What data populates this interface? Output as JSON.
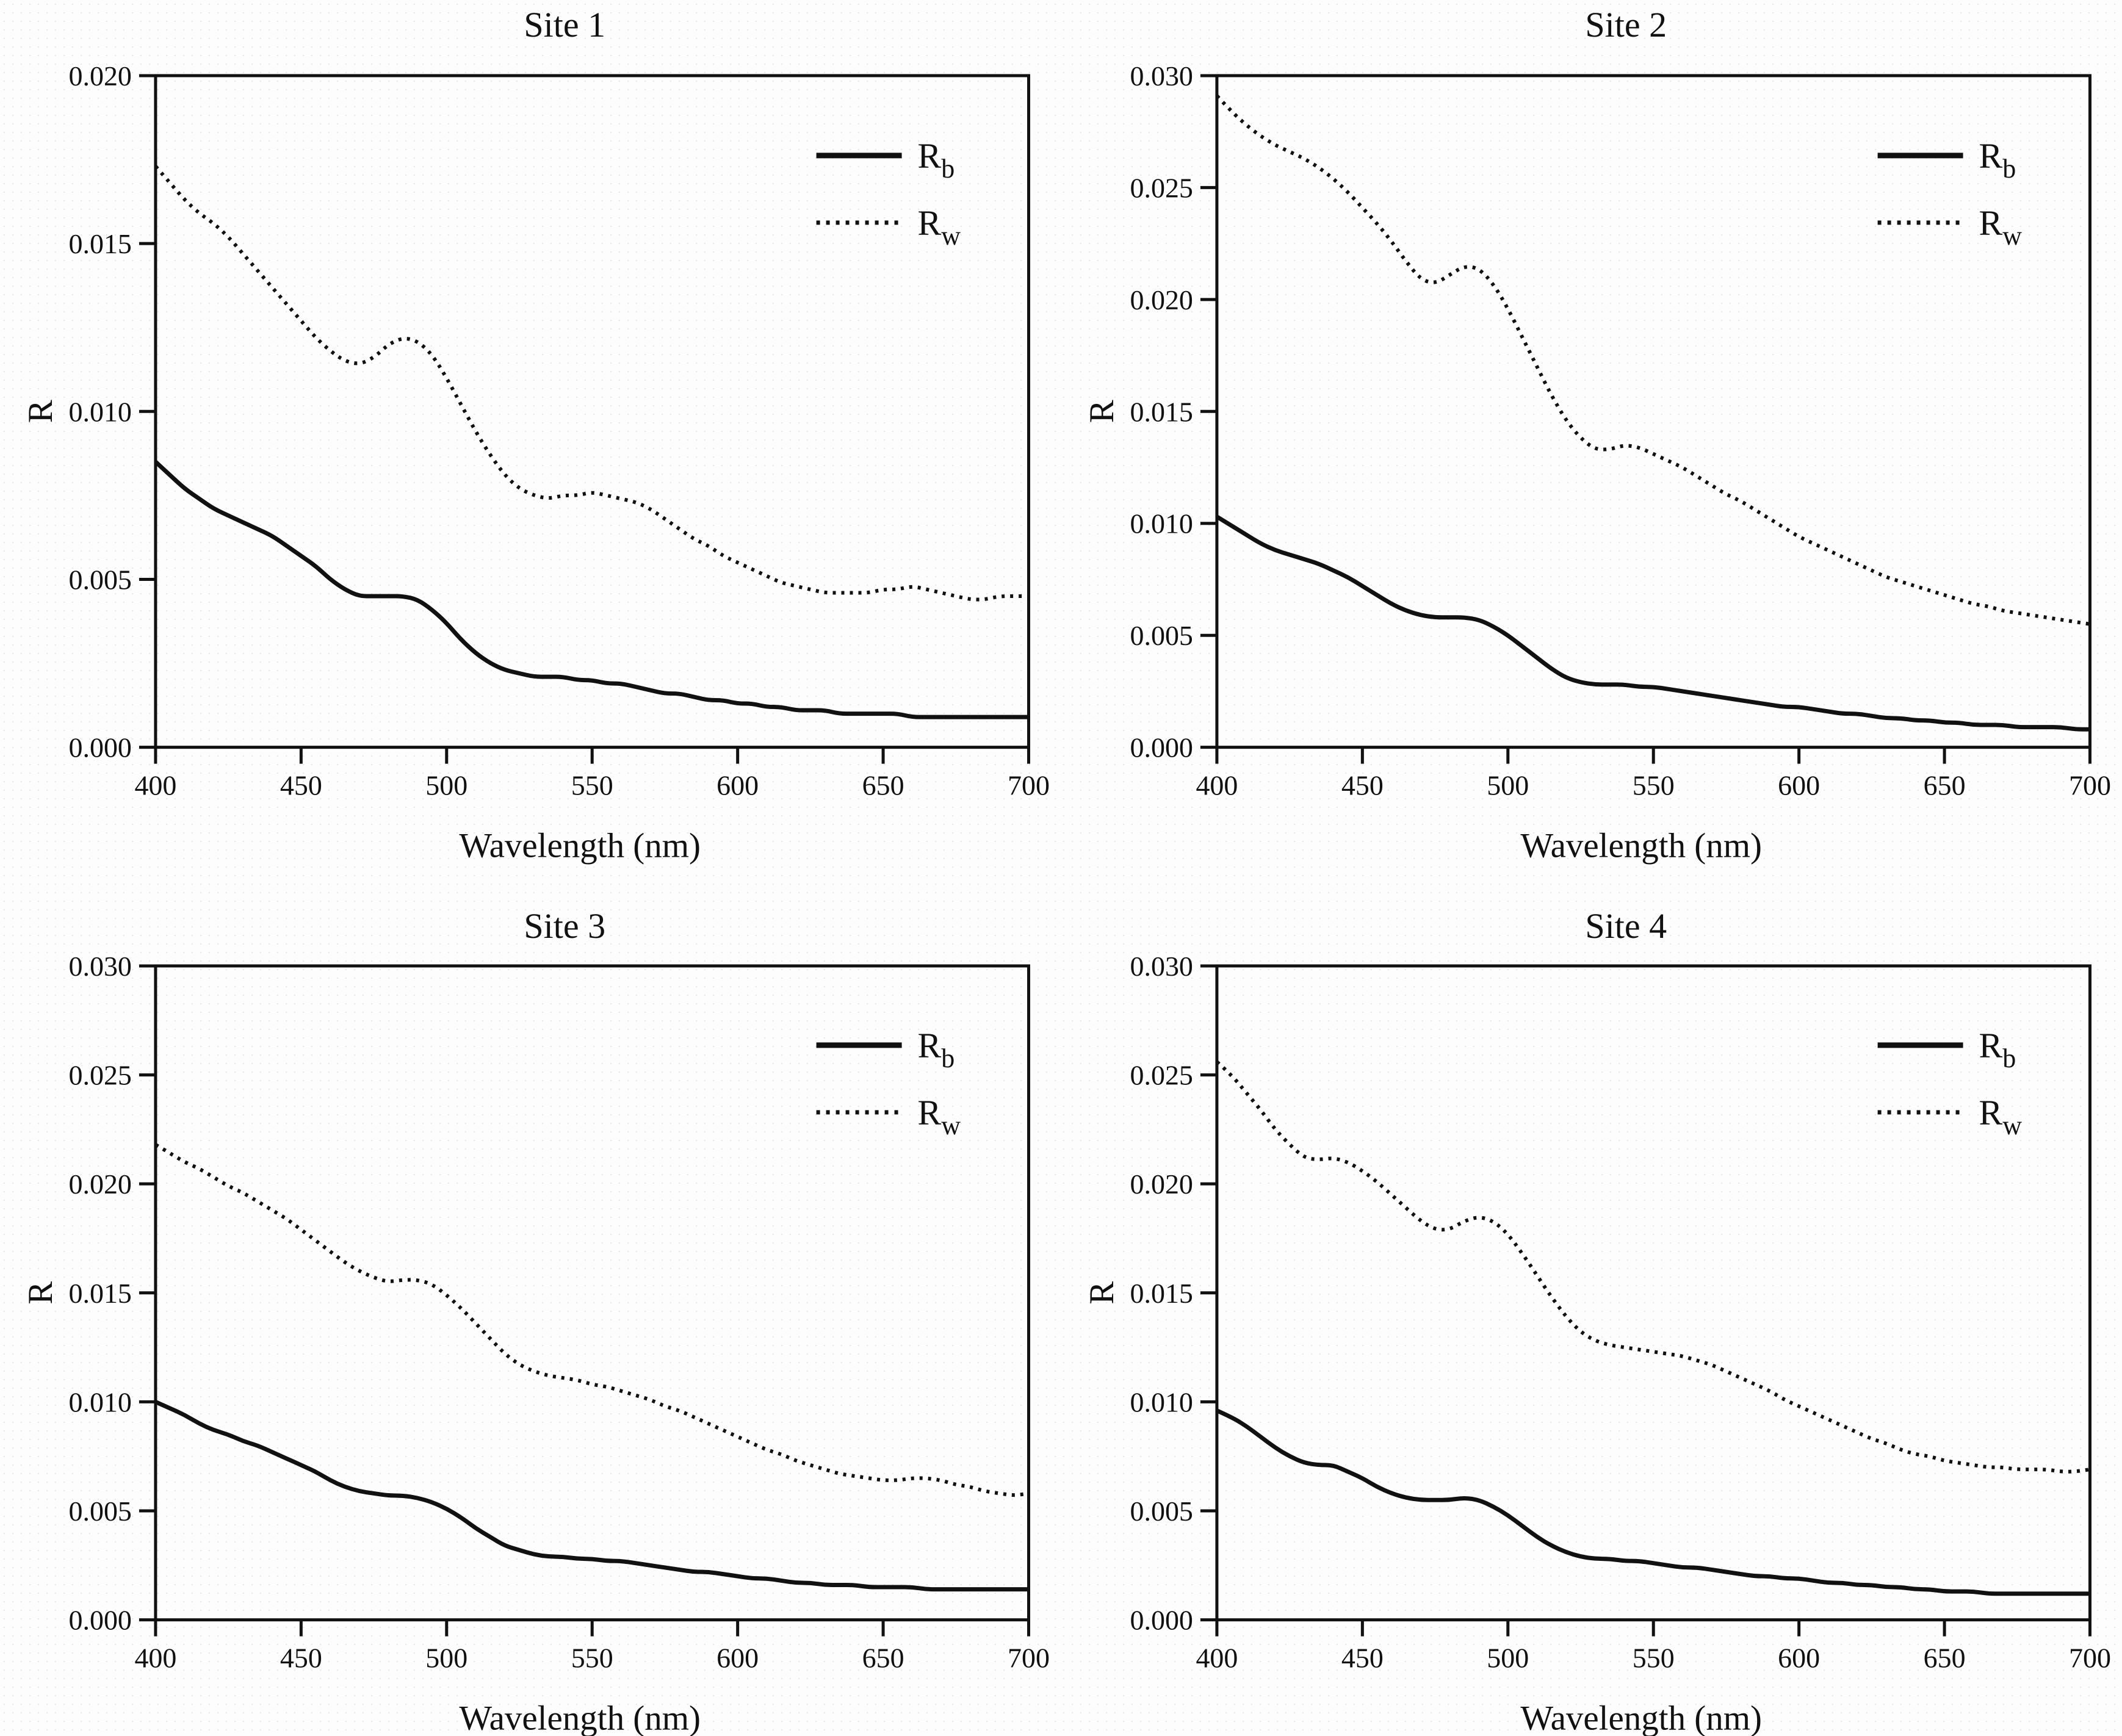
{
  "page": {
    "ink_color": "#111111",
    "background_color": "#fdfdfd"
  },
  "chart_data": [
    {
      "id": "site-1",
      "type": "line",
      "title": "Site 1",
      "xlabel": "Wavelength (nm)",
      "ylabel": "R",
      "xlim": [
        400,
        700
      ],
      "ylim": [
        0,
        0.02
      ],
      "xticks": [
        400,
        450,
        500,
        550,
        600,
        650,
        700
      ],
      "ytick_labels": [
        "0.000",
        "0.005",
        "0.010",
        "0.015",
        "0.020"
      ],
      "grid": "off",
      "legend_position": "top-right",
      "x_start": 400,
      "x_step": 5,
      "legend": [
        {
          "main": "R",
          "sub": "b",
          "line": "solid"
        },
        {
          "main": "R",
          "sub": "w",
          "line": "dotted"
        }
      ],
      "series": [
        {
          "name": "Rw",
          "line": "dotted",
          "values": [
            0.0173,
            0.0168,
            0.0163,
            0.0159,
            0.0156,
            0.0152,
            0.0147,
            0.0142,
            0.0137,
            0.0132,
            0.0127,
            0.0122,
            0.0118,
            0.0115,
            0.0114,
            0.0116,
            0.012,
            0.0122,
            0.0121,
            0.0117,
            0.011,
            0.0102,
            0.0094,
            0.0087,
            0.0081,
            0.0077,
            0.0075,
            0.0074,
            0.0075,
            0.0075,
            0.0076,
            0.0075,
            0.0074,
            0.0073,
            0.0071,
            0.0068,
            0.0065,
            0.0062,
            0.006,
            0.0057,
            0.0055,
            0.0053,
            0.0051,
            0.0049,
            0.0048,
            0.0047,
            0.0046,
            0.0046,
            0.0046,
            0.0046,
            0.0047,
            0.0047,
            0.0048,
            0.0047,
            0.0046,
            0.0045,
            0.0044,
            0.0044,
            0.0045,
            0.0045,
            0.0045
          ]
        },
        {
          "name": "Rb",
          "line": "solid",
          "values": [
            0.0085,
            0.0081,
            0.0077,
            0.0074,
            0.0071,
            0.0069,
            0.0067,
            0.0065,
            0.0063,
            0.006,
            0.0057,
            0.0054,
            0.005,
            0.0047,
            0.0045,
            0.0045,
            0.0045,
            0.0045,
            0.0044,
            0.0041,
            0.0037,
            0.0032,
            0.0028,
            0.0025,
            0.0023,
            0.0022,
            0.0021,
            0.0021,
            0.0021,
            0.002,
            0.002,
            0.0019,
            0.0019,
            0.0018,
            0.0017,
            0.0016,
            0.0016,
            0.0015,
            0.0014,
            0.0014,
            0.0013,
            0.0013,
            0.0012,
            0.0012,
            0.0011,
            0.0011,
            0.0011,
            0.001,
            0.001,
            0.001,
            0.001,
            0.001,
            0.0009,
            0.0009,
            0.0009,
            0.0009,
            0.0009,
            0.0009,
            0.0009,
            0.0009,
            0.0009
          ]
        }
      ]
    },
    {
      "id": "site-2",
      "type": "line",
      "title": "Site 2",
      "xlabel": "Wavelength (nm)",
      "ylabel": "R",
      "xlim": [
        400,
        700
      ],
      "ylim": [
        0,
        0.03
      ],
      "xticks": [
        400,
        450,
        500,
        550,
        600,
        650,
        700
      ],
      "ytick_labels": [
        "0.000",
        "0.005",
        "0.010",
        "0.015",
        "0.020",
        "0.025",
        "0.030"
      ],
      "grid": "off",
      "legend_position": "top-right",
      "x_start": 400,
      "x_step": 5,
      "legend": [
        {
          "main": "R",
          "sub": "b",
          "line": "solid"
        },
        {
          "main": "R",
          "sub": "w",
          "line": "dotted"
        }
      ],
      "series": [
        {
          "name": "Rw",
          "line": "dotted",
          "values": [
            0.0291,
            0.0284,
            0.0278,
            0.0273,
            0.0269,
            0.0266,
            0.0263,
            0.0259,
            0.0254,
            0.0248,
            0.0241,
            0.0234,
            0.0226,
            0.0217,
            0.0209,
            0.0207,
            0.0211,
            0.0215,
            0.0214,
            0.0207,
            0.0196,
            0.0183,
            0.017,
            0.0157,
            0.0146,
            0.0138,
            0.0133,
            0.0133,
            0.0135,
            0.0134,
            0.0131,
            0.0128,
            0.0125,
            0.0121,
            0.0117,
            0.0113,
            0.011,
            0.0106,
            0.0102,
            0.0098,
            0.0094,
            0.0091,
            0.0088,
            0.0085,
            0.0082,
            0.0079,
            0.0076,
            0.0074,
            0.0072,
            0.007,
            0.0068,
            0.0066,
            0.0064,
            0.0063,
            0.0061,
            0.006,
            0.0059,
            0.0058,
            0.0057,
            0.0056,
            0.0055
          ]
        },
        {
          "name": "Rb",
          "line": "solid",
          "values": [
            0.0103,
            0.0099,
            0.0095,
            0.0091,
            0.0088,
            0.0086,
            0.0084,
            0.0082,
            0.0079,
            0.0076,
            0.0072,
            0.0068,
            0.0064,
            0.0061,
            0.0059,
            0.0058,
            0.0058,
            0.0058,
            0.0057,
            0.0054,
            0.005,
            0.0045,
            0.004,
            0.0035,
            0.0031,
            0.0029,
            0.0028,
            0.0028,
            0.0028,
            0.0027,
            0.0027,
            0.0026,
            0.0025,
            0.0024,
            0.0023,
            0.0022,
            0.0021,
            0.002,
            0.0019,
            0.0018,
            0.0018,
            0.0017,
            0.0016,
            0.0015,
            0.0015,
            0.0014,
            0.0013,
            0.0013,
            0.0012,
            0.0012,
            0.0011,
            0.0011,
            0.001,
            0.001,
            0.001,
            0.0009,
            0.0009,
            0.0009,
            0.0009,
            0.0008,
            0.0008
          ]
        }
      ]
    },
    {
      "id": "site-3",
      "type": "line",
      "title": "Site 3",
      "xlabel": "Wavelength (nm)",
      "ylabel": "R",
      "xlim": [
        400,
        700
      ],
      "ylim": [
        0,
        0.03
      ],
      "xticks": [
        400,
        450,
        500,
        550,
        600,
        650,
        700
      ],
      "ytick_labels": [
        "0.000",
        "0.005",
        "0.010",
        "0.015",
        "0.020",
        "0.025",
        "0.030"
      ],
      "grid": "off",
      "legend_position": "top-right",
      "x_start": 400,
      "x_step": 5,
      "legend": [
        {
          "main": "R",
          "sub": "b",
          "line": "solid"
        },
        {
          "main": "R",
          "sub": "w",
          "line": "dotted"
        }
      ],
      "series": [
        {
          "name": "Rw",
          "line": "dotted",
          "values": [
            0.0218,
            0.0214,
            0.021,
            0.0207,
            0.0203,
            0.0199,
            0.0196,
            0.0192,
            0.0188,
            0.0184,
            0.0179,
            0.0174,
            0.0169,
            0.0164,
            0.016,
            0.0157,
            0.0155,
            0.0156,
            0.0156,
            0.0154,
            0.0149,
            0.0143,
            0.0136,
            0.0129,
            0.0122,
            0.0117,
            0.0114,
            0.0112,
            0.0111,
            0.011,
            0.0108,
            0.0107,
            0.0105,
            0.0103,
            0.0101,
            0.0098,
            0.0096,
            0.0093,
            0.009,
            0.0087,
            0.0084,
            0.0081,
            0.0078,
            0.0076,
            0.0073,
            0.0071,
            0.0069,
            0.0067,
            0.0066,
            0.0065,
            0.0064,
            0.0064,
            0.0065,
            0.0065,
            0.0064,
            0.0062,
            0.0061,
            0.0059,
            0.0058,
            0.0057,
            0.0058
          ]
        },
        {
          "name": "Rb",
          "line": "solid",
          "values": [
            0.01,
            0.0097,
            0.0094,
            0.009,
            0.0087,
            0.0085,
            0.0082,
            0.008,
            0.0077,
            0.0074,
            0.0071,
            0.0068,
            0.0064,
            0.0061,
            0.0059,
            0.0058,
            0.0057,
            0.0057,
            0.0056,
            0.0054,
            0.0051,
            0.0047,
            0.0042,
            0.0038,
            0.0034,
            0.0032,
            0.003,
            0.0029,
            0.0029,
            0.0028,
            0.0028,
            0.0027,
            0.0027,
            0.0026,
            0.0025,
            0.0024,
            0.0023,
            0.0022,
            0.0022,
            0.0021,
            0.002,
            0.0019,
            0.0019,
            0.0018,
            0.0017,
            0.0017,
            0.0016,
            0.0016,
            0.0016,
            0.0015,
            0.0015,
            0.0015,
            0.0015,
            0.0014,
            0.0014,
            0.0014,
            0.0014,
            0.0014,
            0.0014,
            0.0014,
            0.0014
          ]
        }
      ]
    },
    {
      "id": "site-4",
      "type": "line",
      "title": "Site 4",
      "xlabel": "Wavelength (nm)",
      "ylabel": "R",
      "xlim": [
        400,
        700
      ],
      "ylim": [
        0,
        0.03
      ],
      "xticks": [
        400,
        450,
        500,
        550,
        600,
        650,
        700
      ],
      "ytick_labels": [
        "0.000",
        "0.005",
        "0.010",
        "0.015",
        "0.020",
        "0.025",
        "0.030"
      ],
      "grid": "off",
      "legend_position": "top-right",
      "x_start": 400,
      "x_step": 5,
      "legend": [
        {
          "main": "R",
          "sub": "b",
          "line": "solid"
        },
        {
          "main": "R",
          "sub": "w",
          "line": "dotted"
        }
      ],
      "series": [
        {
          "name": "Rw",
          "line": "dotted",
          "values": [
            0.0256,
            0.025,
            0.0242,
            0.0234,
            0.0225,
            0.0218,
            0.0212,
            0.0211,
            0.0212,
            0.021,
            0.0206,
            0.0201,
            0.0195,
            0.0189,
            0.0183,
            0.0179,
            0.0179,
            0.0183,
            0.0185,
            0.0183,
            0.0177,
            0.0168,
            0.0158,
            0.0148,
            0.0139,
            0.0132,
            0.0128,
            0.0126,
            0.0125,
            0.0124,
            0.0123,
            0.0122,
            0.0121,
            0.0119,
            0.0117,
            0.0114,
            0.0111,
            0.0108,
            0.0105,
            0.0101,
            0.0098,
            0.0095,
            0.0092,
            0.0089,
            0.0086,
            0.0083,
            0.0081,
            0.0078,
            0.0076,
            0.0075,
            0.0073,
            0.0072,
            0.0071,
            0.007,
            0.007,
            0.0069,
            0.0069,
            0.0069,
            0.0068,
            0.0068,
            0.0069
          ]
        },
        {
          "name": "Rb",
          "line": "solid",
          "values": [
            0.0096,
            0.0093,
            0.0089,
            0.0084,
            0.0079,
            0.0075,
            0.0072,
            0.0071,
            0.0071,
            0.0068,
            0.0065,
            0.0061,
            0.0058,
            0.0056,
            0.0055,
            0.0055,
            0.0055,
            0.0056,
            0.0055,
            0.0052,
            0.0048,
            0.0043,
            0.0038,
            0.0034,
            0.0031,
            0.0029,
            0.0028,
            0.0028,
            0.0027,
            0.0027,
            0.0026,
            0.0025,
            0.0024,
            0.0024,
            0.0023,
            0.0022,
            0.0021,
            0.002,
            0.002,
            0.0019,
            0.0019,
            0.0018,
            0.0017,
            0.0017,
            0.0016,
            0.0016,
            0.0015,
            0.0015,
            0.0014,
            0.0014,
            0.0013,
            0.0013,
            0.0013,
            0.0012,
            0.0012,
            0.0012,
            0.0012,
            0.0012,
            0.0012,
            0.0012,
            0.0012
          ]
        }
      ]
    }
  ]
}
